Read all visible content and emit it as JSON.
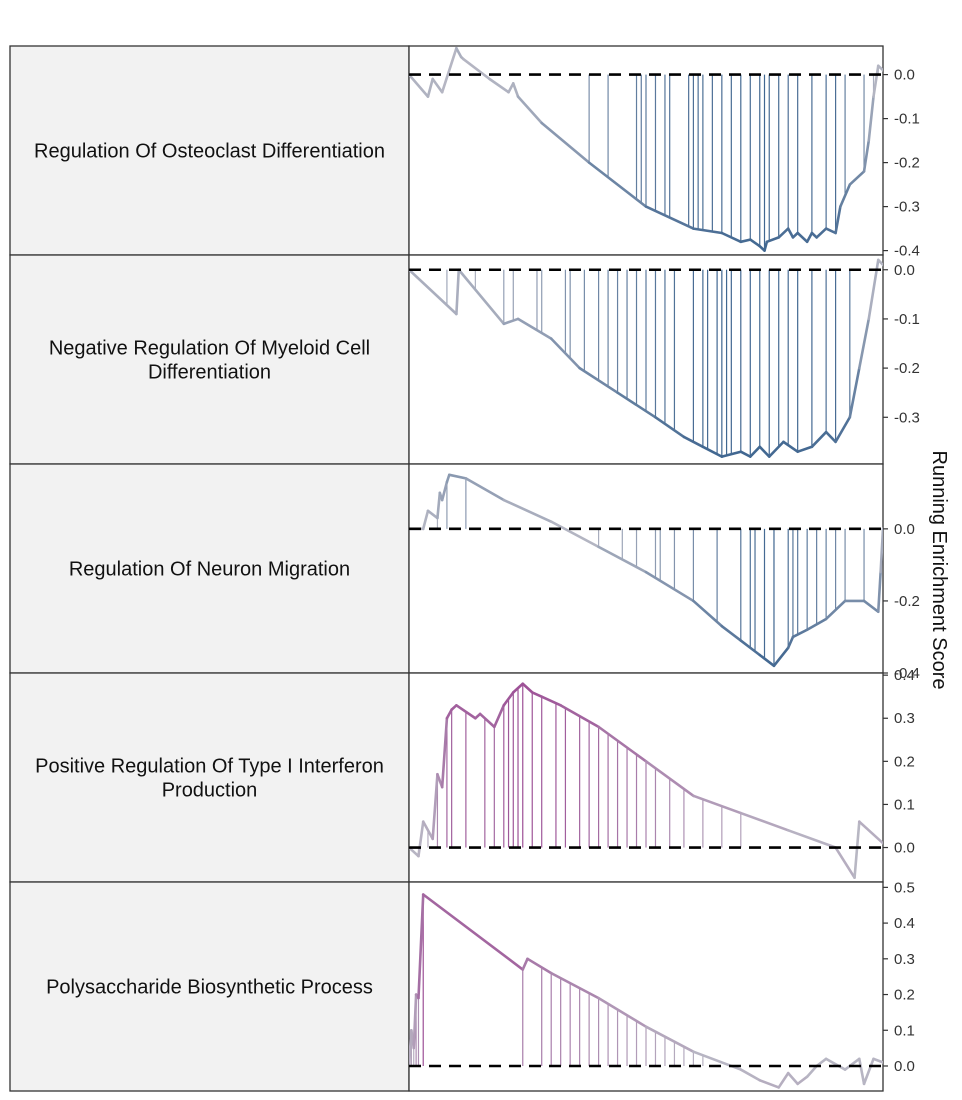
{
  "figure": {
    "y_axis_title": "Running Enrichment Score"
  },
  "chart_data": [
    {
      "type": "line",
      "title": "Regulation Of Osteoclast Differentiation",
      "ylim": [
        -0.41,
        0.065
      ],
      "yticks": [
        0.0,
        -0.1,
        -0.2,
        -0.3,
        -0.4
      ],
      "ytick_labels": [
        "0.0",
        "-0.1",
        "-0.2",
        "-0.3",
        "-0.4"
      ],
      "x": [
        0,
        0.04,
        0.05,
        0.07,
        0.1,
        0.11,
        0.115,
        0.17,
        0.21,
        0.22,
        0.23,
        0.28,
        0.38,
        0.5,
        0.6,
        0.66,
        0.7,
        0.72,
        0.74,
        0.75,
        0.755,
        0.78,
        0.8,
        0.81,
        0.82,
        0.84,
        0.85,
        0.86,
        0.88,
        0.9,
        0.91,
        0.93,
        0.96,
        0.97,
        0.98,
        0.99,
        1.0
      ],
      "y": [
        0.0,
        -0.05,
        -0.01,
        -0.04,
        0.06,
        0.04,
        0.035,
        -0.01,
        -0.04,
        -0.02,
        -0.05,
        -0.11,
        -0.2,
        -0.3,
        -0.35,
        -0.36,
        -0.38,
        -0.375,
        -0.39,
        -0.4,
        -0.38,
        -0.37,
        -0.35,
        -0.37,
        -0.36,
        -0.38,
        -0.36,
        -0.37,
        -0.35,
        -0.36,
        -0.3,
        -0.25,
        -0.22,
        -0.15,
        -0.05,
        0.02,
        0.01
      ],
      "hits": [
        0.38,
        0.42,
        0.48,
        0.49,
        0.5,
        0.52,
        0.54,
        0.55,
        0.59,
        0.6,
        0.61,
        0.62,
        0.64,
        0.66,
        0.68,
        0.7,
        0.72,
        0.74,
        0.75,
        0.76,
        0.78,
        0.8,
        0.82,
        0.85,
        0.88,
        0.9,
        0.92,
        0.96,
        0.98,
        0.99
      ],
      "color_start": "#b8b8c4",
      "color_end": "#3f6690"
    },
    {
      "type": "line",
      "title": "Negative Regulation Of Myeloid Cell Differentiation",
      "ylim": [
        -0.395,
        0.03
      ],
      "yticks": [
        0.0,
        -0.1,
        -0.2,
        -0.3
      ],
      "ytick_labels": [
        "0.0",
        "-0.1",
        "-0.2",
        "-0.3"
      ],
      "x": [
        0,
        0.1,
        0.105,
        0.2,
        0.23,
        0.3,
        0.36,
        0.44,
        0.52,
        0.58,
        0.62,
        0.66,
        0.7,
        0.72,
        0.74,
        0.76,
        0.79,
        0.82,
        0.85,
        0.88,
        0.9,
        0.93,
        0.95,
        0.97,
        0.99,
        1.0
      ],
      "y": [
        0.0,
        -0.09,
        0.0,
        -0.11,
        -0.1,
        -0.14,
        -0.2,
        -0.25,
        -0.3,
        -0.34,
        -0.36,
        -0.38,
        -0.37,
        -0.38,
        -0.36,
        -0.38,
        -0.35,
        -0.37,
        -0.36,
        -0.33,
        -0.35,
        -0.3,
        -0.2,
        -0.1,
        0.02,
        0.01
      ],
      "hits": [
        0.08,
        0.14,
        0.2,
        0.22,
        0.27,
        0.28,
        0.33,
        0.34,
        0.37,
        0.4,
        0.42,
        0.44,
        0.46,
        0.48,
        0.5,
        0.52,
        0.54,
        0.56,
        0.6,
        0.62,
        0.63,
        0.65,
        0.66,
        0.67,
        0.68,
        0.7,
        0.72,
        0.74,
        0.76,
        0.78,
        0.8,
        0.82,
        0.85,
        0.88,
        0.9,
        0.93
      ],
      "color_start": "#b8b8c4",
      "color_end": "#3f6690"
    },
    {
      "type": "line",
      "title": "Regulation Of Neuron Migration",
      "ylim": [
        -0.4,
        0.18
      ],
      "yticks": [
        0.0,
        -0.2,
        -0.4
      ],
      "ytick_labels": [
        "0.0",
        "-0.2",
        "-0.4"
      ],
      "x": [
        0,
        0.03,
        0.04,
        0.06,
        0.065,
        0.07,
        0.08,
        0.085,
        0.12,
        0.2,
        0.3,
        0.4,
        0.5,
        0.6,
        0.66,
        0.7,
        0.74,
        0.77,
        0.8,
        0.81,
        0.84,
        0.88,
        0.92,
        0.96,
        0.99,
        0.995,
        1.0
      ],
      "y": [
        0.0,
        0.0,
        0.05,
        0.03,
        0.1,
        0.08,
        0.13,
        0.15,
        0.14,
        0.08,
        0.02,
        -0.05,
        -0.12,
        -0.2,
        -0.27,
        -0.31,
        -0.35,
        -0.38,
        -0.33,
        -0.3,
        -0.28,
        -0.25,
        -0.2,
        -0.2,
        -0.23,
        -0.12,
        0.0
      ],
      "hits": [
        0.03,
        0.06,
        0.08,
        0.12,
        0.4,
        0.45,
        0.48,
        0.52,
        0.53,
        0.56,
        0.6,
        0.65,
        0.7,
        0.72,
        0.73,
        0.75,
        0.77,
        0.8,
        0.81,
        0.82,
        0.84,
        0.86,
        0.88,
        0.9,
        0.92,
        0.96
      ],
      "color_start": "#b8b8c4",
      "color_end": "#3f6690"
    },
    {
      "type": "line",
      "title": "Positive Regulation Of Type I Interferon Production",
      "ylim": [
        -0.08,
        0.405
      ],
      "yticks": [
        0.4,
        0.3,
        0.2,
        0.1,
        0.0
      ],
      "ytick_labels": [
        "0.4",
        "0.3",
        "0.2",
        "0.1",
        "0.0"
      ],
      "x": [
        0,
        0.02,
        0.03,
        0.05,
        0.06,
        0.07,
        0.08,
        0.09,
        0.1,
        0.14,
        0.15,
        0.18,
        0.2,
        0.22,
        0.24,
        0.26,
        0.28,
        0.32,
        0.4,
        0.5,
        0.6,
        0.7,
        0.8,
        0.9,
        0.94,
        0.95,
        1.0
      ],
      "y": [
        0.0,
        -0.02,
        0.06,
        0.02,
        0.17,
        0.14,
        0.3,
        0.32,
        0.33,
        0.3,
        0.31,
        0.28,
        0.33,
        0.36,
        0.38,
        0.36,
        0.35,
        0.33,
        0.28,
        0.2,
        0.12,
        0.08,
        0.04,
        0.0,
        -0.07,
        0.06,
        0.01
      ],
      "hits": [
        0.02,
        0.04,
        0.06,
        0.08,
        0.09,
        0.12,
        0.16,
        0.18,
        0.2,
        0.21,
        0.22,
        0.23,
        0.24,
        0.26,
        0.28,
        0.31,
        0.33,
        0.36,
        0.38,
        0.4,
        0.42,
        0.44,
        0.46,
        0.48,
        0.5,
        0.52,
        0.55,
        0.58,
        0.62,
        0.66,
        0.7
      ],
      "color_start": "#b8b8c4",
      "color_end": "#9d4f96"
    },
    {
      "type": "line",
      "title": "Polysaccharide Biosynthetic Process",
      "ylim": [
        -0.07,
        0.515
      ],
      "yticks": [
        0.5,
        0.4,
        0.3,
        0.2,
        0.1,
        0.0
      ],
      "ytick_labels": [
        "0.5",
        "0.4",
        "0.3",
        "0.2",
        "0.1",
        "0.0"
      ],
      "x": [
        0,
        0.005,
        0.01,
        0.015,
        0.02,
        0.03,
        0.24,
        0.25,
        0.3,
        0.4,
        0.5,
        0.6,
        0.7,
        0.74,
        0.78,
        0.8,
        0.82,
        0.84,
        0.86,
        0.88,
        0.92,
        0.95,
        0.96,
        0.98,
        1.0
      ],
      "y": [
        0.0,
        0.1,
        0.05,
        0.2,
        0.19,
        0.48,
        0.27,
        0.3,
        0.26,
        0.19,
        0.11,
        0.04,
        -0.01,
        -0.04,
        -0.06,
        -0.02,
        -0.05,
        -0.03,
        0.0,
        0.02,
        -0.01,
        0.02,
        -0.05,
        0.02,
        0.01
      ],
      "hits": [
        0.005,
        0.01,
        0.015,
        0.02,
        0.03,
        0.24,
        0.28,
        0.3,
        0.32,
        0.34,
        0.36,
        0.38,
        0.4,
        0.42,
        0.44,
        0.46,
        0.48,
        0.5,
        0.52,
        0.54,
        0.56,
        0.58,
        0.6,
        0.62
      ],
      "color_start": "#b8b8c4",
      "color_end": "#9d4f96"
    }
  ]
}
